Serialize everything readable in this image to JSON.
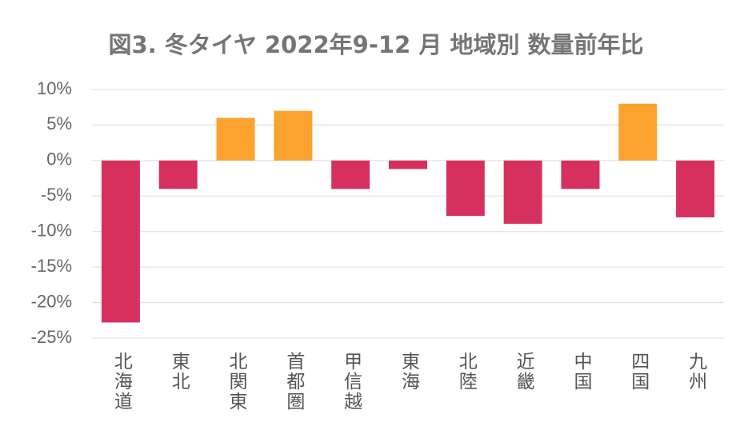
{
  "chart_data": {
    "type": "bar",
    "title": "図3. 冬タイヤ 2022年9-12 月 地域別 数量前年比",
    "categories": [
      "北海道",
      "東北",
      "北関東",
      "首都圏",
      "甲信越",
      "東海",
      "北陸",
      "近畿",
      "中国",
      "四国",
      "九州"
    ],
    "values": [
      -22.8,
      -4,
      6,
      7,
      -4,
      -1.2,
      -7.8,
      -8.9,
      -4,
      8,
      -8
    ],
    "colors": [
      "#d6315e",
      "#d6315e",
      "#fba22f",
      "#fba22f",
      "#d6315e",
      "#d6315e",
      "#d6315e",
      "#d6315e",
      "#d6315e",
      "#fba22f",
      "#d6315e"
    ],
    "ylim": [
      -25,
      10
    ],
    "yticks": [
      {
        "value": 10,
        "label": "10%"
      },
      {
        "value": 5,
        "label": "5%"
      },
      {
        "value": 0,
        "label": "0%"
      },
      {
        "value": -5,
        "label": "-5%"
      },
      {
        "value": -10,
        "label": "-10%"
      },
      {
        "value": -15,
        "label": "-15%"
      },
      {
        "value": -20,
        "label": "-20%"
      },
      {
        "value": -25,
        "label": "-25%"
      }
    ],
    "grid": true
  }
}
